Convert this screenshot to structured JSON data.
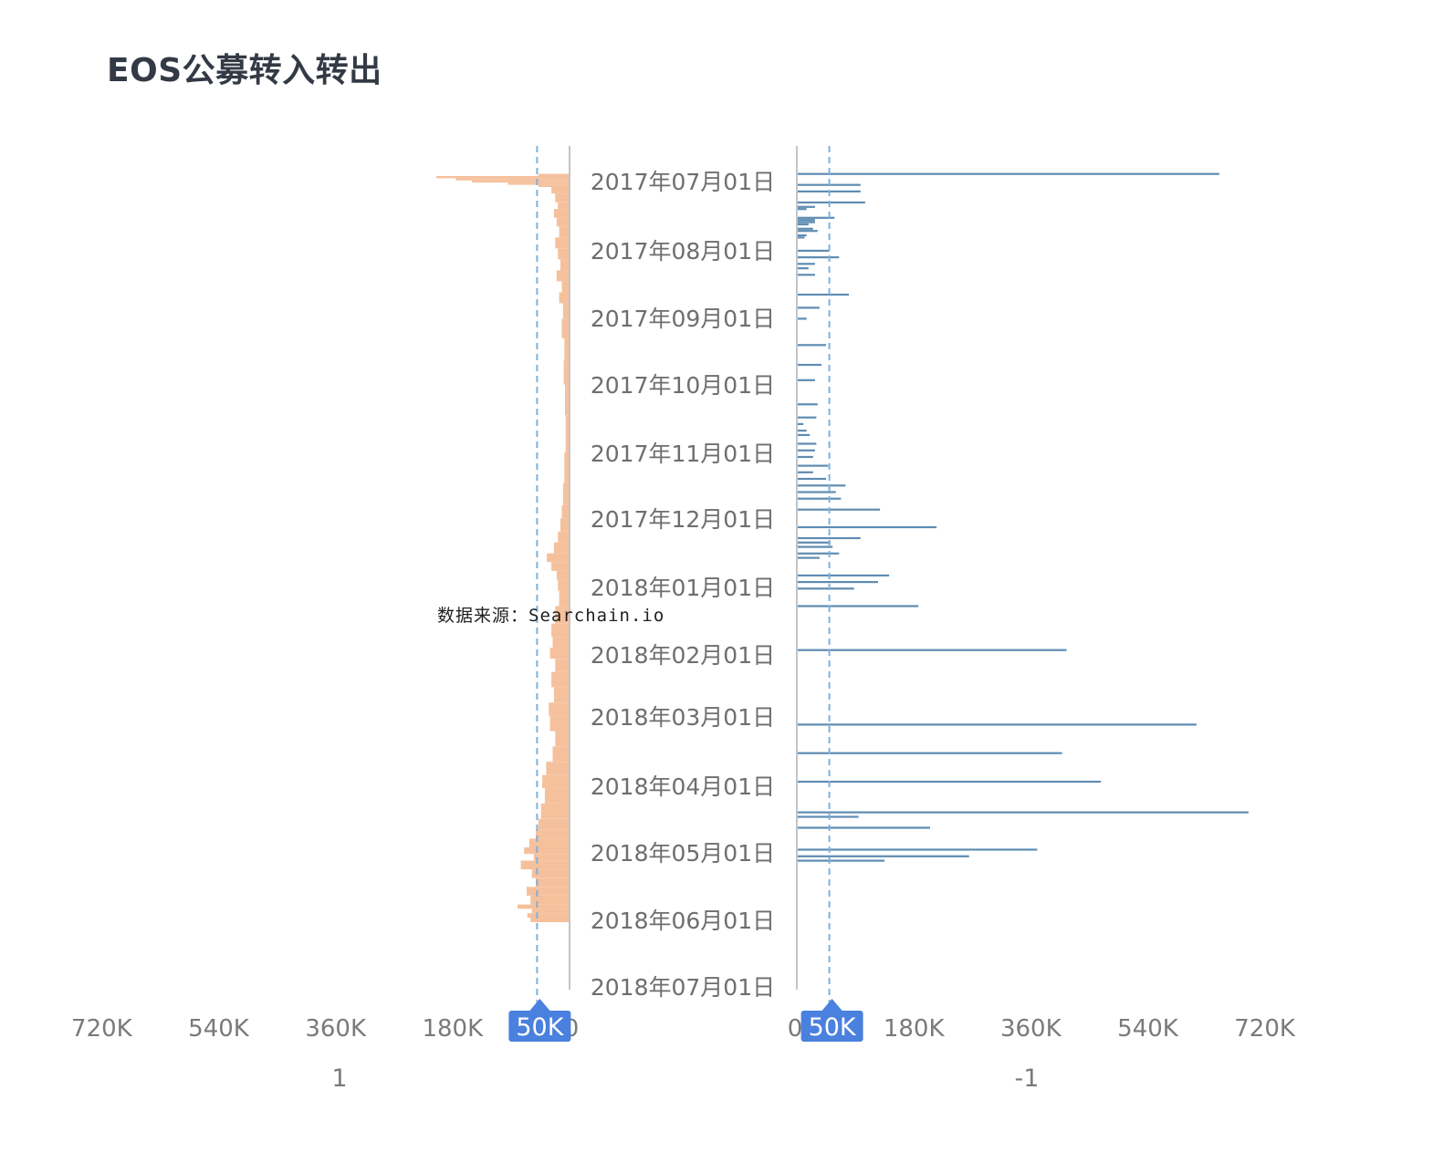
{
  "chart_data": {
    "type": "bar",
    "title": "EOS公募转入转出",
    "watermark": "数据来源：Searchain.io",
    "orientation": "horizontal",
    "layout": "butterfly",
    "y_axis": {
      "type": "date",
      "range": [
        "2017-06-27",
        "2018-07-01"
      ],
      "tick_labels": [
        "2017年07月01日",
        "2017年08月01日",
        "2017年09月01日",
        "2017年10月01日",
        "2017年11月01日",
        "2017年12月01日",
        "2018年01月01日",
        "2018年02月01日",
        "2018年03月01日",
        "2018年04月01日",
        "2018年05月01日",
        "2018年06月01日",
        "2018年07月01日"
      ]
    },
    "left_panel": {
      "xlabel": "1",
      "direction": "reversed",
      "tick_values": [
        0,
        180000,
        360000,
        540000,
        720000
      ],
      "tick_labels": [
        "0",
        "180K",
        "360K",
        "540K",
        "720K"
      ],
      "marker": {
        "value": 50000,
        "label": "50K"
      },
      "color": "#f5c19d",
      "data": [
        [
          "2017-06-27",
          48000
        ],
        [
          "2017-06-28",
          205000
        ],
        [
          "2017-06-29",
          175000
        ],
        [
          "2017-06-30",
          150000
        ],
        [
          "2017-07-01",
          95000
        ],
        [
          "2017-07-02",
          48000
        ],
        [
          "2017-07-03",
          28000
        ],
        [
          "2017-07-06",
          22000
        ],
        [
          "2017-07-10",
          18000
        ],
        [
          "2017-07-13",
          24000
        ],
        [
          "2017-07-17",
          20000
        ],
        [
          "2017-07-21",
          16000
        ],
        [
          "2017-07-26",
          22000
        ],
        [
          "2017-07-31",
          18000
        ],
        [
          "2017-08-05",
          14000
        ],
        [
          "2017-08-10",
          20000
        ],
        [
          "2017-08-15",
          12000
        ],
        [
          "2017-08-20",
          16000
        ],
        [
          "2017-08-25",
          10000
        ],
        [
          "2017-09-01",
          12000
        ],
        [
          "2017-09-10",
          8000
        ],
        [
          "2017-09-20",
          9000
        ],
        [
          "2017-10-01",
          7000
        ],
        [
          "2017-10-15",
          6000
        ],
        [
          "2017-11-01",
          8000
        ],
        [
          "2017-11-15",
          10000
        ],
        [
          "2017-11-25",
          12000
        ],
        [
          "2017-12-01",
          14000
        ],
        [
          "2017-12-07",
          18000
        ],
        [
          "2017-12-12",
          24000
        ],
        [
          "2017-12-17",
          35000
        ],
        [
          "2017-12-21",
          28000
        ],
        [
          "2017-12-25",
          20000
        ],
        [
          "2017-12-29",
          18000
        ],
        [
          "2018-01-03",
          16000
        ],
        [
          "2018-01-10",
          22000
        ],
        [
          "2018-01-18",
          28000
        ],
        [
          "2018-01-24",
          26000
        ],
        [
          "2018-01-29",
          30000
        ],
        [
          "2018-02-03",
          22000
        ],
        [
          "2018-02-09",
          28000
        ],
        [
          "2018-02-16",
          24000
        ],
        [
          "2018-02-23",
          32000
        ],
        [
          "2018-03-01",
          30000
        ],
        [
          "2018-03-08",
          22000
        ],
        [
          "2018-03-15",
          26000
        ],
        [
          "2018-03-22",
          36000
        ],
        [
          "2018-03-28",
          42000
        ],
        [
          "2018-04-03",
          38000
        ],
        [
          "2018-04-10",
          44000
        ],
        [
          "2018-04-17",
          48000
        ],
        [
          "2018-04-22",
          52000
        ],
        [
          "2018-04-26",
          62000
        ],
        [
          "2018-04-30",
          70000
        ],
        [
          "2018-05-03",
          55000
        ],
        [
          "2018-05-06",
          75000
        ],
        [
          "2018-05-10",
          58000
        ],
        [
          "2018-05-14",
          52000
        ],
        [
          "2018-05-18",
          66000
        ],
        [
          "2018-05-22",
          60000
        ],
        [
          "2018-05-26",
          80000
        ],
        [
          "2018-05-28",
          58000
        ],
        [
          "2018-05-30",
          65000
        ],
        [
          "2018-06-01",
          60000
        ]
      ]
    },
    "right_panel": {
      "xlabel": "-1",
      "tick_values": [
        0,
        180000,
        360000,
        540000,
        720000
      ],
      "tick_labels": [
        "0",
        "180K",
        "360K",
        "540K",
        "720K"
      ],
      "marker": {
        "value": 50000,
        "label": "50K"
      },
      "color": "#5e8cb2",
      "data": [
        [
          "2017-06-27",
          650000
        ],
        [
          "2017-07-02",
          98000
        ],
        [
          "2017-07-05",
          98000
        ],
        [
          "2017-07-10",
          105000
        ],
        [
          "2017-07-12",
          28000
        ],
        [
          "2017-07-13",
          15000
        ],
        [
          "2017-07-17",
          58000
        ],
        [
          "2017-07-18",
          28000
        ],
        [
          "2017-07-19",
          28000
        ],
        [
          "2017-07-20",
          18000
        ],
        [
          "2017-07-22",
          25000
        ],
        [
          "2017-07-23",
          32000
        ],
        [
          "2017-07-25",
          15000
        ],
        [
          "2017-07-26",
          12000
        ],
        [
          "2017-08-01",
          50000
        ],
        [
          "2017-08-04",
          65000
        ],
        [
          "2017-08-07",
          28000
        ],
        [
          "2017-08-09",
          18000
        ],
        [
          "2017-08-12",
          28000
        ],
        [
          "2017-08-21",
          80000
        ],
        [
          "2017-08-27",
          35000
        ],
        [
          "2017-09-01",
          15000
        ],
        [
          "2017-09-13",
          45000
        ],
        [
          "2017-09-22",
          38000
        ],
        [
          "2017-09-29",
          28000
        ],
        [
          "2017-10-10",
          32000
        ],
        [
          "2017-10-16",
          30000
        ],
        [
          "2017-10-19",
          10000
        ],
        [
          "2017-10-22",
          15000
        ],
        [
          "2017-10-24",
          20000
        ],
        [
          "2017-10-28",
          30000
        ],
        [
          "2017-10-31",
          28000
        ],
        [
          "2017-11-03",
          25000
        ],
        [
          "2017-11-07",
          48000
        ],
        [
          "2017-11-10",
          25000
        ],
        [
          "2017-11-13",
          45000
        ],
        [
          "2017-11-16",
          75000
        ],
        [
          "2017-11-19",
          60000
        ],
        [
          "2017-11-22",
          68000
        ],
        [
          "2017-11-27",
          128000
        ],
        [
          "2017-12-05",
          215000
        ],
        [
          "2017-12-10",
          98000
        ],
        [
          "2017-12-12",
          52000
        ],
        [
          "2017-12-14",
          55000
        ],
        [
          "2017-12-17",
          65000
        ],
        [
          "2017-12-19",
          35000
        ],
        [
          "2017-12-27",
          142000
        ],
        [
          "2017-12-30",
          125000
        ],
        [
          "2018-01-02",
          88000
        ],
        [
          "2018-01-10",
          187000
        ],
        [
          "2018-01-30",
          415000
        ],
        [
          "2018-03-05",
          615000
        ],
        [
          "2018-03-18",
          408000
        ],
        [
          "2018-03-31",
          468000
        ],
        [
          "2018-04-14",
          695000
        ],
        [
          "2018-04-16",
          95000
        ],
        [
          "2018-04-21",
          205000
        ],
        [
          "2018-05-01",
          370000
        ],
        [
          "2018-05-04",
          265000
        ],
        [
          "2018-05-06",
          135000
        ]
      ]
    }
  }
}
